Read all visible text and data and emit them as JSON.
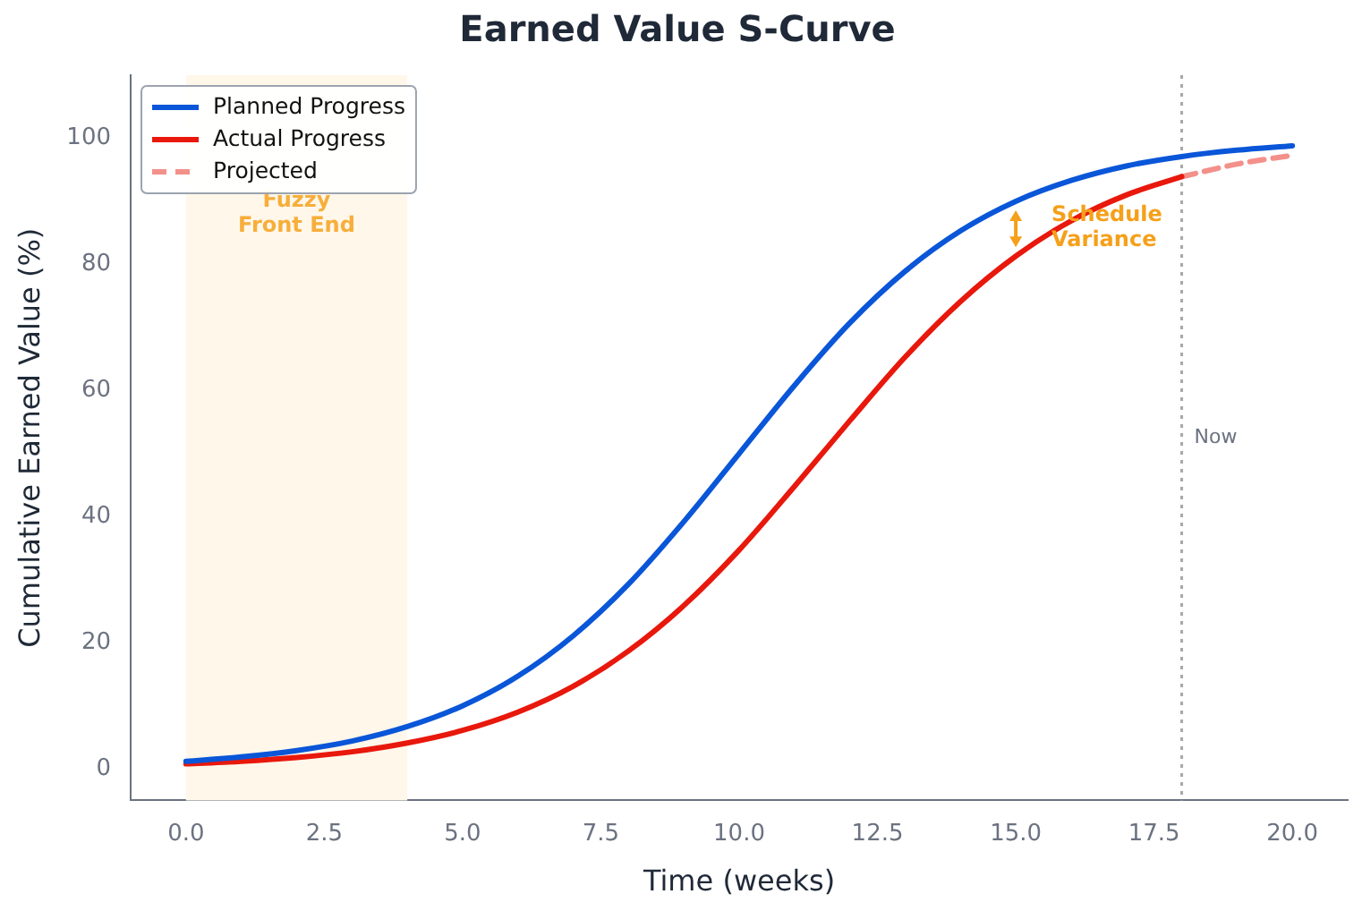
{
  "chart_data": {
    "type": "line",
    "title": "Earned Value S-Curve",
    "xlabel": "Time (weeks)",
    "ylabel": "Cumulative Earned Value (%)",
    "xlim": [
      -1,
      21
    ],
    "ylim": [
      -5,
      110
    ],
    "xticks": [
      {
        "value": 0,
        "label": "0.0"
      },
      {
        "value": 2.5,
        "label": "2.5"
      },
      {
        "value": 5,
        "label": "5.0"
      },
      {
        "value": 7.5,
        "label": "7.5"
      },
      {
        "value": 10,
        "label": "10.0"
      },
      {
        "value": 12.5,
        "label": "12.5"
      },
      {
        "value": 15,
        "label": "15.0"
      },
      {
        "value": 17.5,
        "label": "17.5"
      },
      {
        "value": 20,
        "label": "20.0"
      }
    ],
    "yticks": [
      0,
      20,
      40,
      60,
      80,
      100
    ],
    "grid": false,
    "legend": "top left",
    "marker": "none",
    "series": [
      {
        "name": "Planned Progress",
        "color": "#0a56d8",
        "line_style": "solid",
        "x": [
          0,
          1,
          2,
          3,
          4,
          5,
          6,
          7,
          8,
          9,
          10,
          11,
          12,
          13,
          14,
          15,
          16,
          17,
          18,
          19,
          20
        ],
        "values": [
          1.2,
          1.9,
          2.9,
          4.4,
          6.7,
          10.0,
          14.7,
          21.1,
          29.3,
          39.2,
          50,
          60.8,
          70.7,
          78.9,
          85.3,
          90.0,
          93.3,
          95.6,
          97.1,
          98.1,
          98.8
        ]
      },
      {
        "name": "Actual Progress",
        "color": "#e8180c",
        "line_style": "solid",
        "x": [
          0,
          1,
          2,
          3,
          4,
          5,
          6,
          7,
          8,
          9,
          10,
          11,
          12,
          13,
          14,
          15,
          16,
          17,
          18
        ],
        "values": [
          0.8,
          1.2,
          1.8,
          2.7,
          4.1,
          6.1,
          9.0,
          13.1,
          18.7,
          25.9,
          34.7,
          44.8,
          55.2,
          65.3,
          74.1,
          81.3,
          86.9,
          91.0,
          93.9
        ]
      },
      {
        "name": "Projected",
        "color": "#f4908a",
        "line_style": "dashed",
        "x": [
          18,
          19,
          20
        ],
        "values": [
          93.9,
          95.9,
          97.3
        ]
      }
    ],
    "bands": [
      {
        "axis": "x",
        "from": 0,
        "to": 4,
        "label": "Fuzzy\nFront End",
        "color": "#fff7ea"
      }
    ],
    "ref_lines": [
      {
        "axis": "x",
        "value": 18,
        "label": "Now",
        "color": "#a8a8a8",
        "line_style": "dotted"
      }
    ],
    "annotations": [
      {
        "text": "Schedule\nVariance",
        "x": 15,
        "y": 90.0
      }
    ]
  }
}
